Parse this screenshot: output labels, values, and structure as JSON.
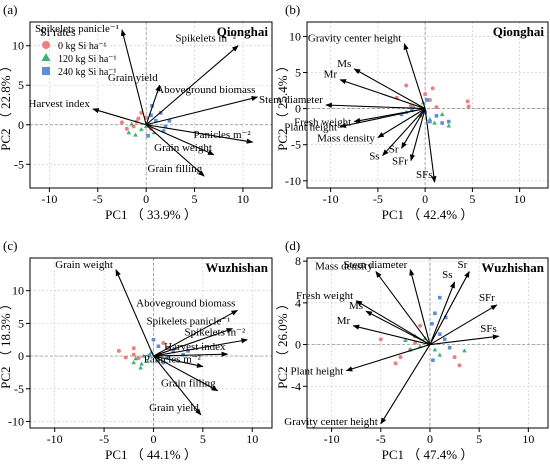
{
  "colors": {
    "group0": "#f08080",
    "group1": "#3cb371",
    "group2": "#5b8fd6",
    "axis": "#000000",
    "grid": "#c8c8c8",
    "arrow": "#000000",
    "text": "#000000"
  },
  "legend": {
    "title": "Si rates",
    "items": [
      {
        "label": "0 kg Si ha⁻¹",
        "color_key": "group0",
        "shape": "circle"
      },
      {
        "label": "120 kg Si ha⁻¹",
        "color_key": "group1",
        "shape": "triangle"
      },
      {
        "label": "240 kg Si ha⁻¹",
        "color_key": "group2",
        "shape": "square"
      }
    ]
  },
  "chart_data": [
    {
      "type": "scatter",
      "panel_label": "(a)",
      "site": "Qionghai",
      "xlabel": "PC1 （ 33.9% ）",
      "ylabel": "PC2 （ 22.8% ）",
      "xlim": [
        -12,
        13
      ],
      "ylim": [
        -8,
        13
      ],
      "xticks": [
        -10,
        -5,
        0,
        5,
        10
      ],
      "yticks": [
        -5,
        0,
        5,
        10
      ],
      "legend": "top-left",
      "grid": true,
      "loadings": [
        {
          "name": "Spikelets panicle⁻¹",
          "x": -2.5,
          "y": 12
        },
        {
          "name": "Spikelets m⁻²",
          "x": 9.5,
          "y": 10
        },
        {
          "name": "Grain yield",
          "x": 1.4,
          "y": 5
        },
        {
          "name": "Aboveground biomass",
          "x": 11.5,
          "y": 3.5
        },
        {
          "name": "Harvest index",
          "x": -5.5,
          "y": 2
        },
        {
          "name": "Panicles m⁻²",
          "x": 11,
          "y": -2.2
        },
        {
          "name": "Grain weight",
          "x": 7,
          "y": -3.8
        },
        {
          "name": "Grain filling",
          "x": 6,
          "y": -6.5
        }
      ],
      "groups": [
        {
          "key": "group0",
          "points": [
            [
              -2.5,
              0.3
            ],
            [
              -2,
              -0.5
            ],
            [
              -1,
              0.4
            ],
            [
              -0.5,
              1.5
            ],
            [
              0,
              0.9
            ],
            [
              0.5,
              -0.5
            ],
            [
              -1.3,
              -0.2
            ],
            [
              -0.8,
              0.8
            ]
          ]
        },
        {
          "key": "group1",
          "points": [
            [
              -1.8,
              -1
            ],
            [
              -1.1,
              -1.3
            ],
            [
              -0.5,
              -0.6
            ],
            [
              0,
              -0.2
            ],
            [
              0.3,
              0
            ],
            [
              -1.5,
              0.1
            ],
            [
              0.8,
              -1
            ]
          ]
        },
        {
          "key": "group2",
          "points": [
            [
              0.5,
              1.2
            ],
            [
              1,
              0.5
            ],
            [
              1.5,
              1.5
            ],
            [
              2,
              -0.2
            ],
            [
              2.4,
              0.5
            ],
            [
              0.2,
              -1.4
            ],
            [
              1.8,
              -0.8
            ],
            [
              0.6,
              2.4
            ]
          ]
        }
      ]
    },
    {
      "type": "scatter",
      "panel_label": "(b)",
      "site": "Qionghai",
      "xlabel": "PC1 （ 42.4% ）",
      "ylabel": "PC2 （ 25.4% ）",
      "xlim": [
        -12.5,
        13
      ],
      "ylim": [
        -11,
        12
      ],
      "xticks": [
        -10,
        -5,
        0,
        5,
        10
      ],
      "yticks": [
        -10,
        -5,
        0,
        5,
        10
      ],
      "grid": true,
      "loadings": [
        {
          "name": "Gravity center height",
          "x": -2.2,
          "y": 9
        },
        {
          "name": "Ms",
          "x": -7.5,
          "y": 5.5
        },
        {
          "name": "Mr",
          "x": -9,
          "y": 4
        },
        {
          "name": "Stem diameter",
          "x": -10.5,
          "y": 0.5
        },
        {
          "name": "Fresh weight",
          "x": -7.5,
          "y": -1.8
        },
        {
          "name": "Plant height",
          "x": -9,
          "y": -2.5
        },
        {
          "name": "Mass density",
          "x": -5,
          "y": -4
        },
        {
          "name": "Sr",
          "x": -2.5,
          "y": -5.5
        },
        {
          "name": "Ss",
          "x": -4.5,
          "y": -6.5
        },
        {
          "name": "SFr",
          "x": -1.5,
          "y": -7.2
        },
        {
          "name": "SFs",
          "x": 1,
          "y": -10.2
        }
      ],
      "groups": [
        {
          "key": "group0",
          "points": [
            [
              -3,
              1.5
            ],
            [
              -2,
              3.2
            ],
            [
              -1.5,
              0.4
            ],
            [
              0,
              2
            ],
            [
              0.5,
              1.2
            ],
            [
              -0.5,
              -1
            ],
            [
              1.2,
              0.2
            ],
            [
              4.5,
              1
            ],
            [
              4.6,
              0.3
            ],
            [
              0.8,
              2.8
            ]
          ]
        },
        {
          "key": "group1",
          "points": [
            [
              -2,
              -0.5
            ],
            [
              -1.2,
              0.2
            ],
            [
              -0.5,
              -0.9
            ],
            [
              0.5,
              -1.5
            ],
            [
              1,
              -2
            ],
            [
              2.5,
              -2.4
            ],
            [
              -0.2,
              0.8
            ],
            [
              1.8,
              -0.8
            ]
          ]
        },
        {
          "key": "group2",
          "points": [
            [
              -1.4,
              -0.2
            ],
            [
              0,
              -0.5
            ],
            [
              0.5,
              -1.8
            ],
            [
              1.2,
              -1
            ],
            [
              1.8,
              -2
            ],
            [
              2.5,
              -1.8
            ],
            [
              0.2,
              1.2
            ],
            [
              -2.5,
              -0.8
            ]
          ]
        }
      ]
    },
    {
      "type": "scatter",
      "panel_label": "(c)",
      "site": "Wuzhishan",
      "xlabel": "PC1 （ 44.1% ）",
      "ylabel": "PC2 （ 18.3% ）",
      "xlim": [
        -12.5,
        12
      ],
      "ylim": [
        -11,
        15
      ],
      "xticks": [
        -10,
        -5,
        0,
        5,
        10
      ],
      "yticks": [
        -10,
        -5,
        0,
        5,
        10
      ],
      "grid": true,
      "loadings": [
        {
          "name": "Grain weight",
          "x": -3.8,
          "y": 13.2
        },
        {
          "name": "Aboveground biomass",
          "x": 8.5,
          "y": 7
        },
        {
          "name": "Spikelets panicle⁻¹",
          "x": 8,
          "y": 4.2
        },
        {
          "name": "Spikelets m⁻²",
          "x": 9.5,
          "y": 2.5
        },
        {
          "name": "Harvest index",
          "x": 7.5,
          "y": 0.3
        },
        {
          "name": "Panicles m⁻²",
          "x": 5,
          "y": -1.6
        },
        {
          "name": "Grain filling",
          "x": 6.5,
          "y": -5.3
        },
        {
          "name": "Grain yield",
          "x": 4.8,
          "y": -9
        }
      ],
      "groups": [
        {
          "key": "group0",
          "points": [
            [
              -3.5,
              0.8
            ],
            [
              -2,
              0.2
            ],
            [
              -1.5,
              -0.3
            ],
            [
              -2.8,
              -0.2
            ],
            [
              1,
              2
            ],
            [
              1.5,
              1.2
            ],
            [
              0.6,
              0.3
            ],
            [
              -2,
              1.2
            ]
          ]
        },
        {
          "key": "group1",
          "points": [
            [
              -1.8,
              -0.4
            ],
            [
              -1,
              0
            ],
            [
              -0.6,
              -0.8
            ],
            [
              -1.2,
              -1.2
            ],
            [
              0.5,
              -0.5
            ],
            [
              -0.2,
              0.6
            ],
            [
              -1.3,
              -1.8
            ],
            [
              -2,
              -1
            ]
          ]
        },
        {
          "key": "group2",
          "points": [
            [
              0,
              2.5
            ],
            [
              0.5,
              1.5
            ],
            [
              1.5,
              -0.1
            ],
            [
              2,
              0.7
            ],
            [
              3,
              0.2
            ],
            [
              3.5,
              0.8
            ],
            [
              1,
              -1
            ],
            [
              -0.4,
              0.1
            ]
          ]
        }
      ]
    },
    {
      "type": "scatter",
      "panel_label": "(d)",
      "site": "Wuzhishan",
      "xlabel": "PC1 （ 47.4% ）",
      "ylabel": "PC2 （ 26.0% ）",
      "xlim": [
        -12.5,
        12
      ],
      "ylim": [
        -8,
        8.3
      ],
      "xticks": [
        -10,
        -5,
        0,
        5,
        10
      ],
      "yticks": [
        -4,
        0,
        4,
        8
      ],
      "grid": true,
      "loadings": [
        {
          "name": "Mass density",
          "x": -5.5,
          "y": 7
        },
        {
          "name": "Stem diameter",
          "x": -2,
          "y": 7.2
        },
        {
          "name": "Sr",
          "x": 4,
          "y": 7
        },
        {
          "name": "Ss",
          "x": 2.5,
          "y": 6
        },
        {
          "name": "Fresh weight",
          "x": -7.5,
          "y": 4.2
        },
        {
          "name": "Ms",
          "x": -6.5,
          "y": 3.2
        },
        {
          "name": "SFr",
          "x": 6.8,
          "y": 3.8
        },
        {
          "name": "Mr",
          "x": -7.8,
          "y": 1.8
        },
        {
          "name": "SFs",
          "x": 7,
          "y": 0.8
        },
        {
          "name": "Plant height",
          "x": -8.5,
          "y": -2.5
        },
        {
          "name": "Gravity center height",
          "x": -5,
          "y": -7.6
        }
      ],
      "groups": [
        {
          "key": "group0",
          "points": [
            [
              -5,
              0.5
            ],
            [
              -3,
              -1.2
            ],
            [
              -2,
              -0.5
            ],
            [
              -1.5,
              0.2
            ],
            [
              -3.5,
              -1.8
            ],
            [
              2.5,
              -1.2
            ],
            [
              3,
              -2
            ],
            [
              -1,
              1.8
            ]
          ]
        },
        {
          "key": "group1",
          "points": [
            [
              -2.5,
              0.4
            ],
            [
              -1.5,
              0.8
            ],
            [
              -1,
              -0.2
            ],
            [
              -0.5,
              0.6
            ],
            [
              0.5,
              -0.5
            ],
            [
              1,
              -1
            ],
            [
              3.5,
              -0.6
            ],
            [
              -2,
              -0.5
            ]
          ]
        },
        {
          "key": "group2",
          "points": [
            [
              0.2,
              2
            ],
            [
              0.5,
              3
            ],
            [
              1,
              1
            ],
            [
              1.5,
              0.5
            ],
            [
              2,
              -0.3
            ],
            [
              1,
              4.5
            ],
            [
              0.3,
              -1.5
            ],
            [
              1.6,
              2.6
            ]
          ]
        }
      ]
    }
  ]
}
